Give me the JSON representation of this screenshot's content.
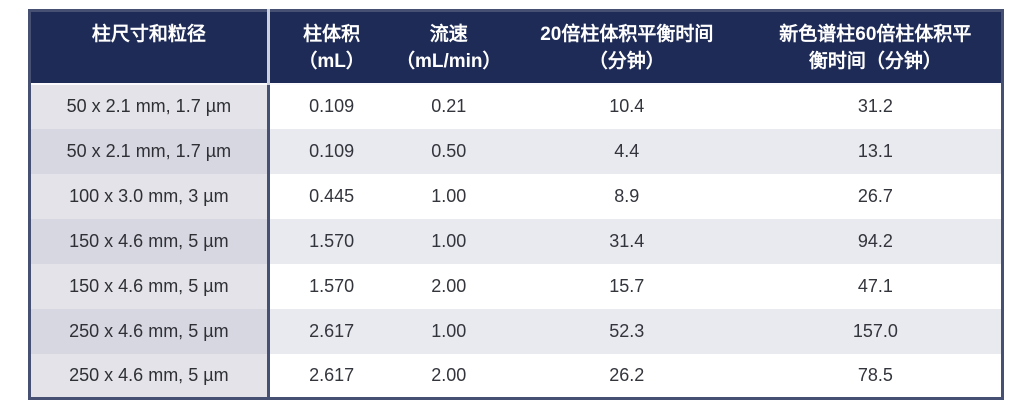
{
  "table": {
    "column_keys": [
      "dimensions",
      "volume",
      "flow-rate",
      "equil-20cv",
      "equil-60cv"
    ],
    "columns": [
      {
        "label": "柱尺寸和粒径"
      },
      {
        "label": "柱体积\n（mL）"
      },
      {
        "label": "流速\n（mL/min）"
      },
      {
        "label": "20倍柱体积平衡时间\n（分钟）"
      },
      {
        "label": "新色谱柱60倍柱体积平\n衡时间（分钟）"
      }
    ],
    "rows": [
      [
        "50 x 2.1 mm, 1.7 µm",
        "0.109",
        "0.21",
        "10.4",
        "31.2"
      ],
      [
        "50 x 2.1 mm, 1.7 µm",
        "0.109",
        "0.50",
        "4.4",
        "13.1"
      ],
      [
        "100 x 3.0 mm, 3 µm",
        "0.445",
        "1.00",
        "8.9",
        "26.7"
      ],
      [
        "150 x 4.6 mm, 5 µm",
        "1.570",
        "1.00",
        "31.4",
        "94.2"
      ],
      [
        "150 x 4.6 mm, 5 µm",
        "1.570",
        "2.00",
        "15.7",
        "47.1"
      ],
      [
        "250 x 4.6 mm, 5 µm",
        "2.617",
        "1.00",
        "52.3",
        "157.0"
      ],
      [
        "250 x 4.6 mm, 5 µm",
        "2.617",
        "2.00",
        "26.2",
        "78.5"
      ]
    ],
    "colors": {
      "header_bg": "#1e2b57",
      "header_text": "#ffffff",
      "outer_border": "#465073",
      "row_odd_first_col": "#e3e3e9",
      "row_even_first_col": "#d7d7e1",
      "row_odd_data": "#ffffff",
      "row_even_data": "#e9e9f0",
      "body_text": "#33353c"
    }
  },
  "chart_data": {
    "type": "table",
    "columns": [
      "柱尺寸和粒径",
      "柱体积（mL）",
      "流速（mL/min）",
      "20倍柱体积平衡时间（分钟）",
      "新色谱柱60倍柱体积平衡时间（分钟）"
    ],
    "rows": [
      [
        "50 x 2.1 mm, 1.7 µm",
        0.109,
        0.21,
        10.4,
        31.2
      ],
      [
        "50 x 2.1 mm, 1.7 µm",
        0.109,
        0.5,
        4.4,
        13.1
      ],
      [
        "100 x 3.0 mm, 3 µm",
        0.445,
        1.0,
        8.9,
        26.7
      ],
      [
        "150 x 4.6 mm, 5 µm",
        1.57,
        1.0,
        31.4,
        94.2
      ],
      [
        "150 x 4.6 mm, 5 µm",
        1.57,
        2.0,
        15.7,
        47.1
      ],
      [
        "250 x 4.6 mm, 5 µm",
        2.617,
        1.0,
        52.3,
        157.0
      ],
      [
        "250 x 4.6 mm, 5 µm",
        2.617,
        2.0,
        26.2,
        78.5
      ]
    ]
  }
}
